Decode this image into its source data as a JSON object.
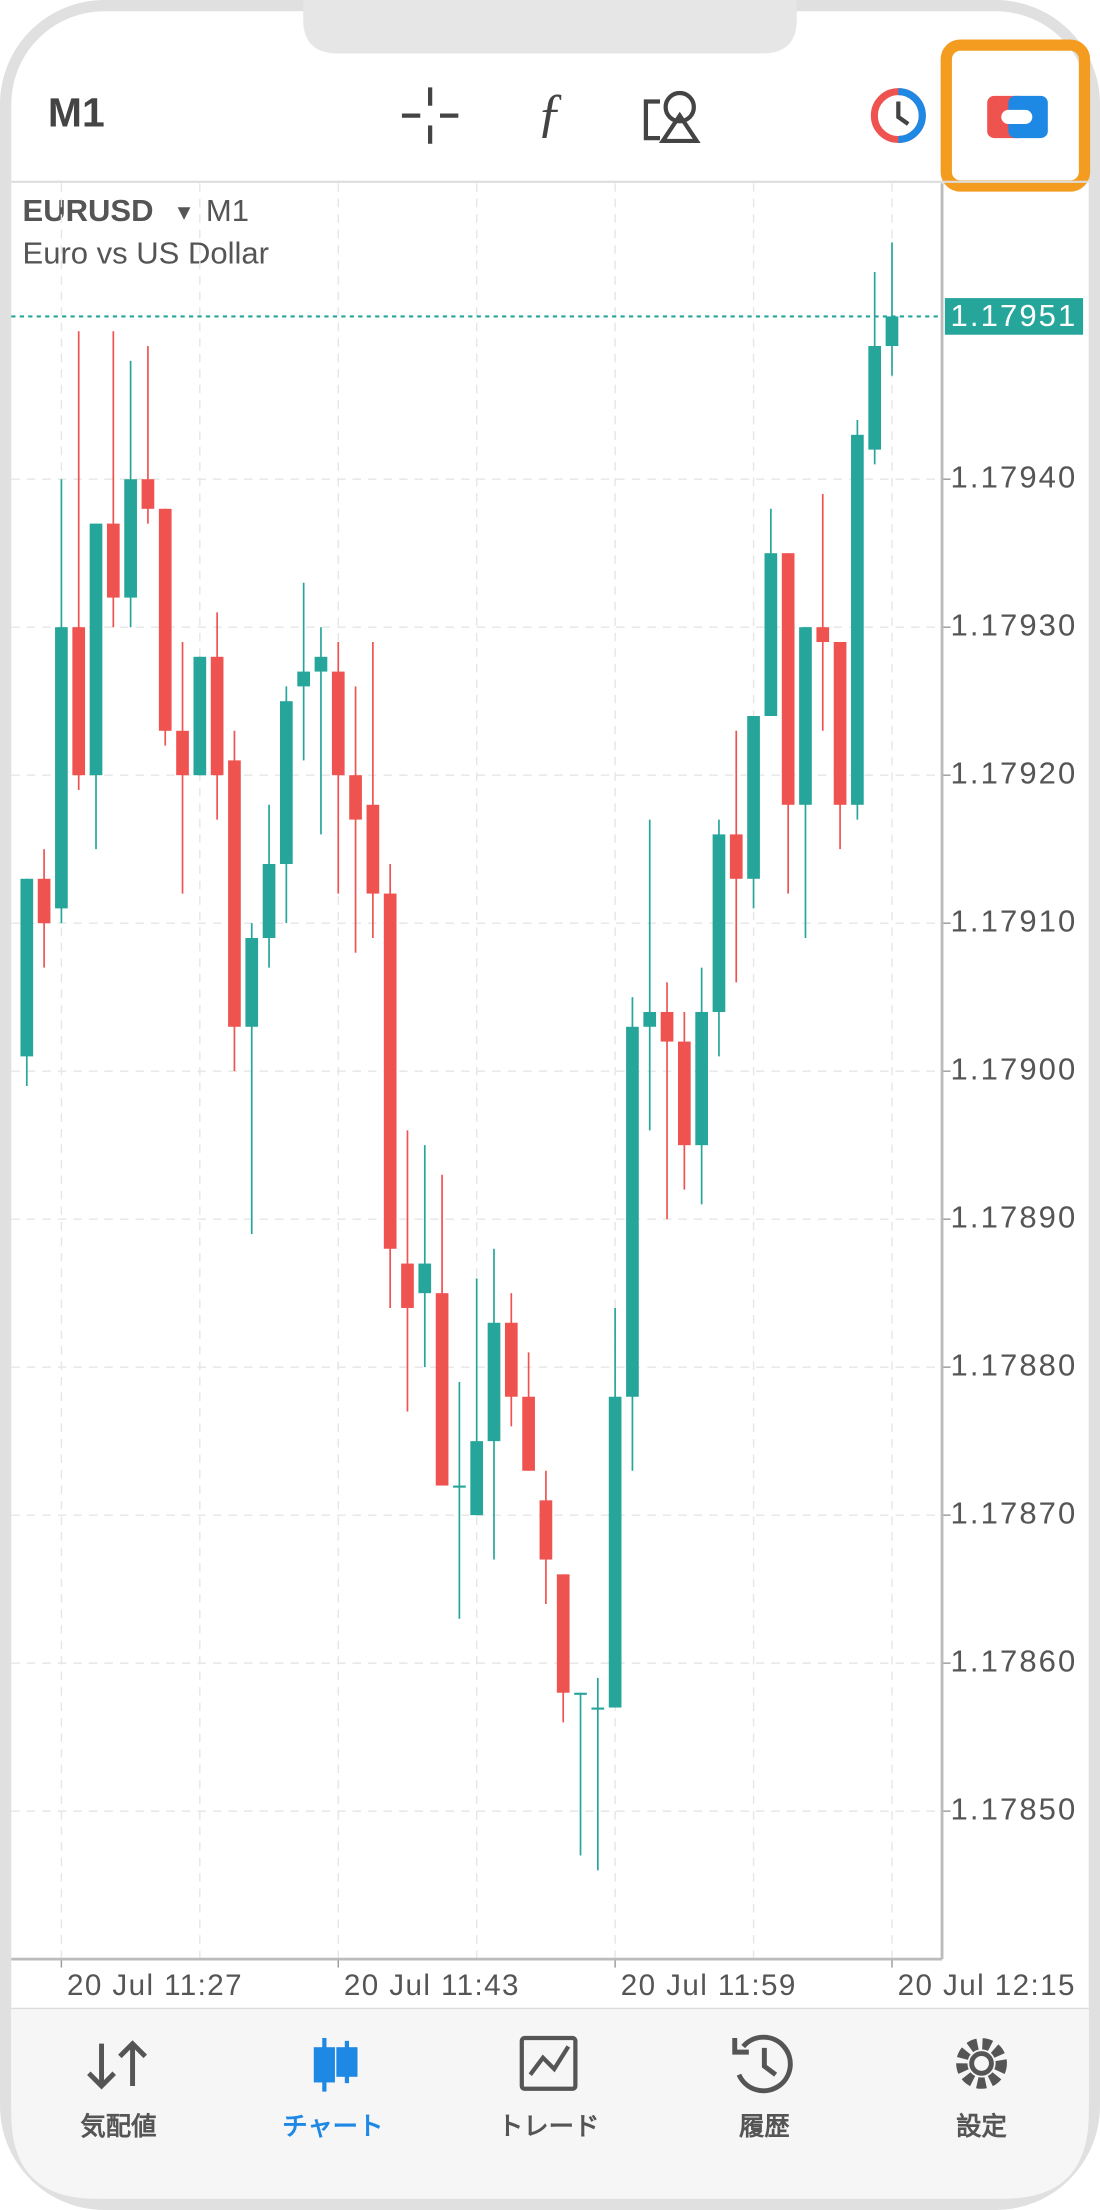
{
  "header": {
    "timeframe": "M1"
  },
  "chart_data": {
    "type": "candlestick",
    "symbol": "EURUSD",
    "timeframe": "M1",
    "subtitle": "Euro vs US Dollar",
    "categories": [
      null,
      null,
      "20 Jul 11:27",
      null,
      null,
      null,
      null,
      null,
      null,
      null,
      null,
      null,
      null,
      null,
      null,
      null,
      null,
      null,
      "20 Jul 11:43",
      null,
      null,
      null,
      null,
      null,
      null,
      null,
      null,
      null,
      null,
      null,
      null,
      null,
      null,
      null,
      "20 Jul 11:59",
      null,
      null,
      null,
      null,
      null,
      null,
      null,
      null,
      null,
      null,
      null,
      null,
      null,
      null,
      null,
      "20 Jul 12:15"
    ],
    "open": [
      1.17901,
      1.17913,
      1.17911,
      1.1793,
      1.1792,
      1.17937,
      1.17932,
      1.1794,
      1.17938,
      1.17923,
      1.1792,
      1.17928,
      1.17921,
      1.17903,
      1.17909,
      1.17914,
      1.17926,
      1.17927,
      1.17927,
      1.1792,
      1.17918,
      1.17912,
      1.17887,
      1.17885,
      1.17885,
      1.17872,
      1.1787,
      1.17875,
      1.17883,
      1.17878,
      1.17871,
      1.17866,
      1.17858,
      1.17857,
      1.17857,
      1.17878,
      1.17903,
      1.17904,
      1.17902,
      1.17895,
      1.17904,
      1.17916,
      1.17913,
      1.17924,
      1.17935,
      1.17918,
      1.1793,
      1.17929,
      1.17918,
      1.17942,
      1.17949
    ],
    "high": [
      1.17913,
      1.17915,
      1.1794,
      1.1795,
      1.17937,
      1.1795,
      1.17948,
      1.17949,
      1.17938,
      1.17929,
      1.17928,
      1.17931,
      1.17923,
      1.1791,
      1.17918,
      1.17926,
      1.17933,
      1.1793,
      1.17929,
      1.17926,
      1.17929,
      1.17914,
      1.17896,
      1.17895,
      1.17893,
      1.17879,
      1.17886,
      1.17888,
      1.17885,
      1.17881,
      1.17873,
      1.17866,
      1.17858,
      1.17859,
      1.17884,
      1.17905,
      1.17917,
      1.17906,
      1.17904,
      1.17907,
      1.17917,
      1.17923,
      1.17924,
      1.17938,
      1.17935,
      1.1793,
      1.17939,
      1.17929,
      1.17944,
      1.17954,
      1.17956
    ],
    "low": [
      1.17899,
      1.17907,
      1.1791,
      1.17919,
      1.17915,
      1.1793,
      1.1793,
      1.17937,
      1.17922,
      1.17912,
      1.1792,
      1.17917,
      1.179,
      1.17889,
      1.17907,
      1.1791,
      1.17921,
      1.17916,
      1.17912,
      1.17908,
      1.17909,
      1.17884,
      1.17877,
      1.1788,
      1.17872,
      1.17863,
      1.1787,
      1.17867,
      1.17876,
      1.17873,
      1.17864,
      1.17856,
      1.17847,
      1.17846,
      1.17857,
      1.17873,
      1.17896,
      1.1789,
      1.17892,
      1.17891,
      1.17901,
      1.17906,
      1.17911,
      1.17924,
      1.17912,
      1.17909,
      1.17923,
      1.17915,
      1.17917,
      1.17941,
      1.17947
    ],
    "close": [
      1.17913,
      1.1791,
      1.1793,
      1.1792,
      1.17937,
      1.17932,
      1.1794,
      1.17938,
      1.17923,
      1.1792,
      1.17928,
      1.1792,
      1.17903,
      1.17909,
      1.17914,
      1.17925,
      1.17927,
      1.17928,
      1.1792,
      1.17917,
      1.17912,
      1.17888,
      1.17884,
      1.17887,
      1.17872,
      1.17872,
      1.17875,
      1.17883,
      1.17878,
      1.17873,
      1.17867,
      1.17858,
      1.17858,
      1.17857,
      1.17878,
      1.17903,
      1.17904,
      1.17902,
      1.17895,
      1.17904,
      1.17916,
      1.17913,
      1.17924,
      1.17935,
      1.17918,
      1.1793,
      1.17929,
      1.17918,
      1.17943,
      1.17949,
      1.17951
    ],
    "current_price": 1.17951,
    "up_color": "#26a69a",
    "down_color": "#ef5350",
    "ylim": [
      1.1784,
      1.1796
    ],
    "yticks": [
      {
        "value": 1.1785,
        "label": "1.17850"
      },
      {
        "value": 1.1786,
        "label": "1.17860"
      },
      {
        "value": 1.1787,
        "label": "1.17870"
      },
      {
        "value": 1.1788,
        "label": "1.17880"
      },
      {
        "value": 1.1789,
        "label": "1.17890"
      },
      {
        "value": 1.179,
        "label": "1.17900"
      },
      {
        "value": 1.1791,
        "label": "1.17910"
      },
      {
        "value": 1.1792,
        "label": "1.17920"
      },
      {
        "value": 1.1793,
        "label": "1.17930"
      },
      {
        "value": 1.1794,
        "label": "1.17940"
      }
    ],
    "grid": true
  },
  "tabs": [
    "気配値",
    "チャート",
    "トレード",
    "履歴",
    "設定"
  ]
}
